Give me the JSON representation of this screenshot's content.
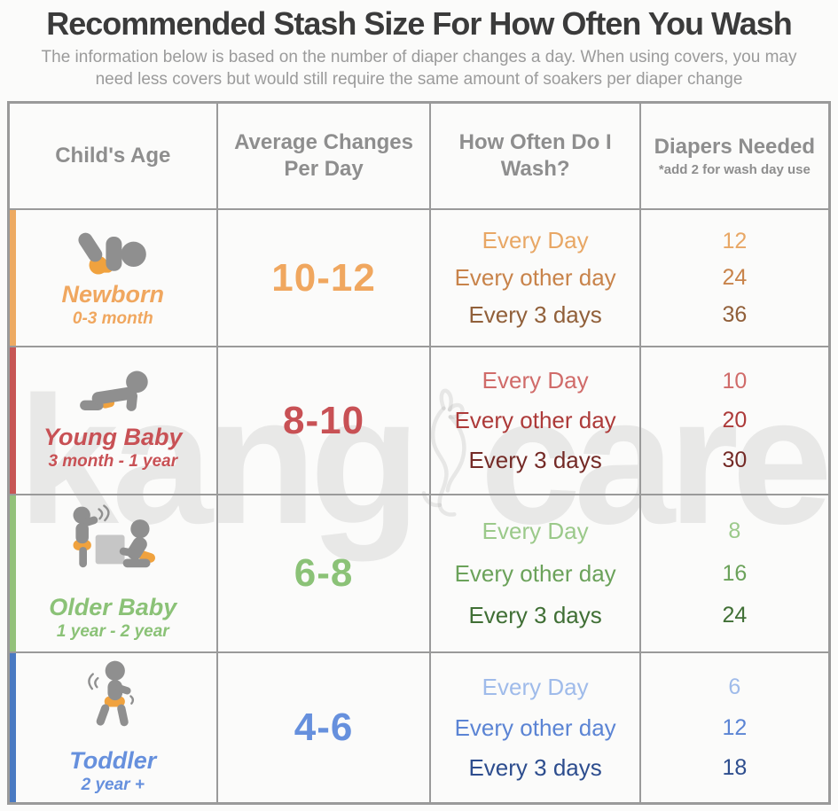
{
  "page": {
    "title": "Recommended Stash Size For How Often You Wash",
    "subtitle": "The information below is based on the number of diaper changes a day. When using covers, you may need less covers but would still require the same amount of soakers per diaper change"
  },
  "watermark": {
    "left": "kang",
    "right": "care"
  },
  "table": {
    "headers": {
      "age": "Child's Age",
      "changes": "Average Changes Per Day",
      "wash": "How Often Do I Wash?",
      "needed": "Diapers Needed",
      "needed_note": "*add 2 for wash day use"
    },
    "rows": [
      {
        "group": "Newborn",
        "age_range": "0-3 month",
        "changes_per_day": "10-12",
        "icon": "newborn-baby-icon",
        "accent_color": "#edaa62",
        "label_color": "#f0a75f",
        "shade_colors": [
          "#e8a765",
          "#c8834a",
          "#91603a"
        ],
        "wash_options": [
          {
            "label": "Every Day",
            "diapers": "12"
          },
          {
            "label": "Every other day",
            "diapers": "24"
          },
          {
            "label": "Every 3 days",
            "diapers": "36"
          }
        ]
      },
      {
        "group": "Young Baby",
        "age_range": "3 month - 1 year",
        "changes_per_day": "8-10",
        "icon": "crawling-baby-icon",
        "accent_color": "#c75655",
        "label_color": "#c85155",
        "shade_colors": [
          "#d06b69",
          "#ad3a39",
          "#742a26"
        ],
        "wash_options": [
          {
            "label": "Every Day",
            "diapers": "10"
          },
          {
            "label": "Every other day",
            "diapers": "20"
          },
          {
            "label": "Every 3 days",
            "diapers": "30"
          }
        ]
      },
      {
        "group": "Older Baby",
        "age_range": "1 year - 2 year",
        "changes_per_day": "6-8",
        "icon": "playing-toddlers-icon",
        "accent_color": "#93c17a",
        "label_color": "#8bc277",
        "shade_colors": [
          "#9bc98a",
          "#6ba25a",
          "#406f35"
        ],
        "wash_options": [
          {
            "label": "Every Day",
            "diapers": "8"
          },
          {
            "label": "Every other day",
            "diapers": "16"
          },
          {
            "label": "Every 3 days",
            "diapers": "24"
          }
        ]
      },
      {
        "group": "Toddler",
        "age_range": "2 year +",
        "changes_per_day": "4-6",
        "icon": "walking-toddler-icon",
        "accent_color": "#4a7ac2",
        "label_color": "#6690dd",
        "shade_colors": [
          "#9fbbea",
          "#5b84d4",
          "#2d4d8e"
        ],
        "wash_options": [
          {
            "label": "Every Day",
            "diapers": "6"
          },
          {
            "label": "Every other day",
            "diapers": "12"
          },
          {
            "label": "Every 3 days",
            "diapers": "18"
          }
        ]
      }
    ]
  },
  "colors": {
    "border": "#9a9a9a",
    "header_text": "#8e8e8e",
    "title_text": "#3b3b3b",
    "subtitle_text": "#9b9b9b",
    "icon_gray": "#8f8f8f",
    "diaper_orange": "#f0a23e",
    "watermark_gray": "#828282"
  },
  "chart_data": {
    "type": "table",
    "title": "Recommended Stash Size For How Often You Wash",
    "columns": [
      "Child's Age",
      "Average Changes Per Day",
      "How Often Do I Wash?",
      "Diapers Needed (*add 2 for wash day use)"
    ],
    "rows": [
      [
        "Newborn (0-3 month)",
        "10-12",
        "Every Day",
        12
      ],
      [
        "Newborn (0-3 month)",
        "10-12",
        "Every other day",
        24
      ],
      [
        "Newborn (0-3 month)",
        "10-12",
        "Every 3 days",
        36
      ],
      [
        "Young Baby (3 month - 1 year)",
        "8-10",
        "Every Day",
        10
      ],
      [
        "Young Baby (3 month - 1 year)",
        "8-10",
        "Every other day",
        20
      ],
      [
        "Young Baby (3 month - 1 year)",
        "8-10",
        "Every 3 days",
        30
      ],
      [
        "Older Baby (1 year - 2 year)",
        "6-8",
        "Every Day",
        8
      ],
      [
        "Older Baby (1 year - 2 year)",
        "6-8",
        "Every other day",
        16
      ],
      [
        "Older Baby (1 year - 2 year)",
        "6-8",
        "Every 3 days",
        24
      ],
      [
        "Toddler (2 year +)",
        "4-6",
        "Every Day",
        6
      ],
      [
        "Toddler (2 year +)",
        "4-6",
        "Every other day",
        12
      ],
      [
        "Toddler (2 year +)",
        "4-6",
        "Every 3 days",
        18
      ]
    ]
  }
}
